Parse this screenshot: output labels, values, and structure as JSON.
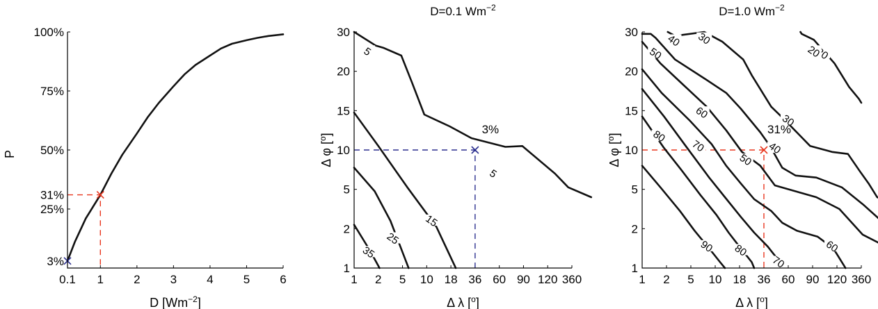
{
  "colors": {
    "blue": "#2b2f8f",
    "red": "#e8361e",
    "line": "#111111"
  },
  "chart_data": [
    {
      "type": "line",
      "title": "",
      "xlabel": "D [Wm$^{-2}$]",
      "xlabel_main": "D [Wm",
      "xlabel_sup": "−2",
      "xlabel_tail": "]",
      "ylabel": "P",
      "xlim": [
        0,
        6
      ],
      "ylim": [
        0,
        100
      ],
      "x_ticks": [
        {
          "value": 0.1,
          "label": "0.1",
          "color": "blue"
        },
        {
          "value": 1,
          "label": "1",
          "color": "red"
        },
        {
          "value": 2,
          "label": "2"
        },
        {
          "value": 3,
          "label": "3"
        },
        {
          "value": 4,
          "label": "4"
        },
        {
          "value": 5,
          "label": "5"
        },
        {
          "value": 6,
          "label": "6"
        }
      ],
      "y_ticks": [
        {
          "value": 25,
          "label": "25%"
        },
        {
          "value": 50,
          "label": "50%"
        },
        {
          "value": 75,
          "label": "75%"
        },
        {
          "value": 100,
          "label": "100%"
        }
      ],
      "series": [
        {
          "x": [
            0.1,
            0.3,
            0.6,
            1.0,
            1.3,
            1.6,
            2.0,
            2.3,
            2.6,
            3.0,
            3.3,
            3.6,
            4.0,
            4.3,
            4.6,
            5.0,
            5.3,
            5.6,
            6.0
          ],
          "y": [
            3,
            11,
            21,
            31,
            40,
            48,
            57,
            64,
            70,
            77,
            82,
            86,
            90,
            93,
            95,
            96.5,
            97.5,
            98.3,
            99
          ]
        }
      ],
      "highlights": [
        {
          "x": 0.1,
          "y": 3,
          "label": "3%",
          "color": "blue"
        },
        {
          "x": 1,
          "y": 31,
          "label": "31%",
          "color": "red"
        }
      ]
    },
    {
      "type": "contour",
      "title": "D=0.1 Wm$^{-2}$",
      "title_main": "D=0.1 Wm",
      "title_sup": "−2",
      "xlabel": "Δ λ [°]",
      "xlabel_main": "Δ λ [",
      "xlabel_sup": "o",
      "xlabel_tail": "]",
      "ylabel": "Δ φ [°]",
      "ylabel_main": "Δ φ [",
      "ylabel_sup": "o",
      "ylabel_tail": "]",
      "x_ticks": [
        "1",
        "2",
        "5",
        "10",
        "18",
        "36",
        "60",
        "90",
        "120",
        "360"
      ],
      "y_ticks": [
        "1",
        "2",
        "5",
        "10",
        "15",
        "20",
        "30"
      ],
      "contour_levels": [
        5,
        15,
        25,
        35
      ],
      "contours": [
        {
          "level": "5",
          "points": [
            [
              0,
              6
            ],
            [
              0.9,
              5.65
            ],
            [
              1.2,
              5.6
            ],
            [
              1.95,
              5.4
            ],
            [
              2.4,
              4.7
            ],
            [
              2.9,
              3.9
            ],
            [
              3.95,
              3.6
            ],
            [
              4.85,
              3.3
            ],
            [
              6.25,
              3.08
            ],
            [
              6.95,
              3.1
            ],
            [
              8.3,
              2.4
            ],
            [
              8.85,
              2.05
            ],
            [
              9.8,
              1.8
            ]
          ],
          "label_at": [
            0.55,
            5.5
          ],
          "label_at2": [
            5.75,
            2.4
          ]
        },
        {
          "level": "15",
          "points": [
            [
              0,
              3.95
            ],
            [
              1.0,
              3.1
            ],
            [
              2.2,
              2.05
            ],
            [
              3.4,
              1.05
            ],
            [
              4.2,
              0
            ]
          ],
          "label_at": [
            3.2,
            1.2
          ]
        },
        {
          "level": "25",
          "points": [
            [
              0,
              2.55
            ],
            [
              0.85,
              1.95
            ],
            [
              1.5,
              1.2
            ],
            [
              2.0,
              0.4
            ],
            [
              2.25,
              0
            ]
          ],
          "label_at": [
            1.6,
            0.75
          ]
        },
        {
          "level": "35",
          "points": [
            [
              0,
              1.1
            ],
            [
              0.65,
              0.45
            ],
            [
              1.05,
              0
            ]
          ],
          "label_at": [
            0.6,
            0.4
          ]
        }
      ],
      "highlight": {
        "x_index": 5,
        "y_index": 3,
        "label": "3%",
        "color": "blue"
      }
    },
    {
      "type": "contour",
      "title": "D=1.0 Wm$^{-2}$",
      "title_main": "D=1.0 Wm",
      "title_sup": "−2",
      "xlabel": "Δ λ [°]",
      "xlabel_main": "Δ λ [",
      "xlabel_sup": "o",
      "xlabel_tail": "]",
      "ylabel": "Δ φ [°]",
      "ylabel_main": "Δ φ [",
      "ylabel_sup": "o",
      "ylabel_tail": "]",
      "x_ticks": [
        "1",
        "2",
        "5",
        "10",
        "18",
        "36",
        "60",
        "90",
        "120",
        "360"
      ],
      "y_ticks": [
        "1",
        "2",
        "5",
        "10",
        "15",
        "20",
        "30"
      ],
      "contour_levels": [
        20,
        30,
        40,
        50,
        60,
        70,
        80,
        90
      ],
      "contours": [
        {
          "level": "20",
          "points": [
            [
              6.5,
              6.0
            ],
            [
              6.55,
              5.95
            ],
            [
              7.05,
              5.8
            ],
            [
              7.9,
              5.2
            ],
            [
              8.5,
              4.6
            ],
            [
              8.9,
              4.3
            ],
            [
              9.0,
              4.2
            ]
          ],
          "label_at": [
            7.4,
            5.45
          ],
          "label_at2": [
            7.05,
            5.5
          ]
        },
        {
          "level": "30",
          "points": [
            [
              1.05,
              6.0
            ],
            [
              1.35,
              5.9
            ],
            [
              2.55,
              6.0
            ],
            [
              3.3,
              5.75
            ],
            [
              4.15,
              5.3
            ],
            [
              4.5,
              4.9
            ],
            [
              5.3,
              4.1
            ],
            [
              5.8,
              3.8
            ],
            [
              6.9,
              3.1
            ],
            [
              7.8,
              2.95
            ],
            [
              8.45,
              2.9
            ],
            [
              8.95,
              2.45
            ],
            [
              9.3,
              2.15
            ],
            [
              9.65,
              1.8
            ],
            [
              10,
              1.72
            ]
          ],
          "label_at": [
            2.55,
            5.83
          ],
          "label_at2": [
            6.0,
            3.75
          ]
        },
        {
          "level": "40",
          "points": [
            [
              0,
              5.95
            ],
            [
              0.35,
              5.95
            ],
            [
              0.55,
              5.85
            ],
            [
              1.35,
              5.3
            ],
            [
              2.6,
              4.8
            ],
            [
              3.45,
              4.45
            ],
            [
              4.05,
              4.05
            ],
            [
              4.85,
              3.45
            ],
            [
              5.25,
              3.1
            ],
            [
              5.75,
              2.55
            ],
            [
              6.3,
              2.35
            ],
            [
              7.15,
              2.3
            ],
            [
              8.2,
              2.05
            ],
            [
              9.1,
              1.6
            ],
            [
              10,
              1.1
            ]
          ],
          "label_at": [
            1.3,
            5.78
          ],
          "label_at2": [
            5.45,
            3.05
          ]
        },
        {
          "level": "50",
          "points": [
            [
              0,
              5.75
            ],
            [
              0.75,
              5.2
            ],
            [
              1.7,
              4.65
            ],
            [
              2.65,
              4.1
            ],
            [
              3.45,
              3.5
            ],
            [
              4.1,
              2.95
            ],
            [
              4.85,
              2.6
            ],
            [
              5.45,
              2.1
            ],
            [
              6.3,
              1.95
            ],
            [
              7.15,
              1.8
            ],
            [
              8.1,
              1.5
            ],
            [
              9.05,
              0.85
            ],
            [
              10,
              0.55
            ]
          ],
          "label_at": [
            0.55,
            5.45
          ],
          "label_at2": [
            4.25,
            2.75
          ]
        },
        {
          "level": "60",
          "points": [
            [
              0,
              5.05
            ],
            [
              0.8,
              4.45
            ],
            [
              1.95,
              3.75
            ],
            [
              2.85,
              3.15
            ],
            [
              3.45,
              2.6
            ],
            [
              4.05,
              2.15
            ],
            [
              4.6,
              1.75
            ],
            [
              5.3,
              1.45
            ],
            [
              5.75,
              1.15
            ],
            [
              6.35,
              0.95
            ],
            [
              7.2,
              0.8
            ],
            [
              7.85,
              0.5
            ],
            [
              8.35,
              0
            ]
          ],
          "label_at": [
            2.45,
            3.95
          ],
          "label_at2": [
            7.8,
            0.55
          ]
        },
        {
          "level": "70",
          "points": [
            [
              0,
              4.55
            ],
            [
              0.9,
              3.85
            ],
            [
              1.85,
              3.05
            ],
            [
              2.75,
              2.3
            ],
            [
              3.4,
              1.8
            ],
            [
              4.05,
              1.3
            ],
            [
              4.6,
              0.9
            ],
            [
              5.15,
              0.55
            ],
            [
              5.6,
              0.2
            ],
            [
              5.75,
              0.05
            ]
          ],
          "label_at": [
            2.3,
            3.1
          ],
          "label_at2": [
            5.6,
            0.15
          ]
        },
        {
          "level": "80",
          "points": [
            [
              0,
              3.85
            ],
            [
              0.9,
              3.05
            ],
            [
              1.6,
              2.5
            ],
            [
              2.4,
              1.85
            ],
            [
              3.05,
              1.35
            ],
            [
              3.55,
              0.9
            ],
            [
              4.05,
              0.5
            ],
            [
              4.5,
              0.15
            ],
            [
              4.6,
              0
            ]
          ],
          "label_at": [
            0.7,
            3.35
          ],
          "label_at2": [
            4.05,
            0.45
          ]
        },
        {
          "level": "90",
          "points": [
            [
              0,
              2.6
            ],
            [
              0.75,
              2.05
            ],
            [
              1.55,
              1.45
            ],
            [
              2.15,
              0.95
            ],
            [
              2.75,
              0.5
            ],
            [
              3.2,
              0.15
            ],
            [
              3.4,
              0
            ]
          ],
          "label_at": [
            2.65,
            0.55
          ]
        }
      ],
      "highlight": {
        "x_index": 5,
        "y_index": 3,
        "label": "31%",
        "color": "red"
      }
    }
  ]
}
